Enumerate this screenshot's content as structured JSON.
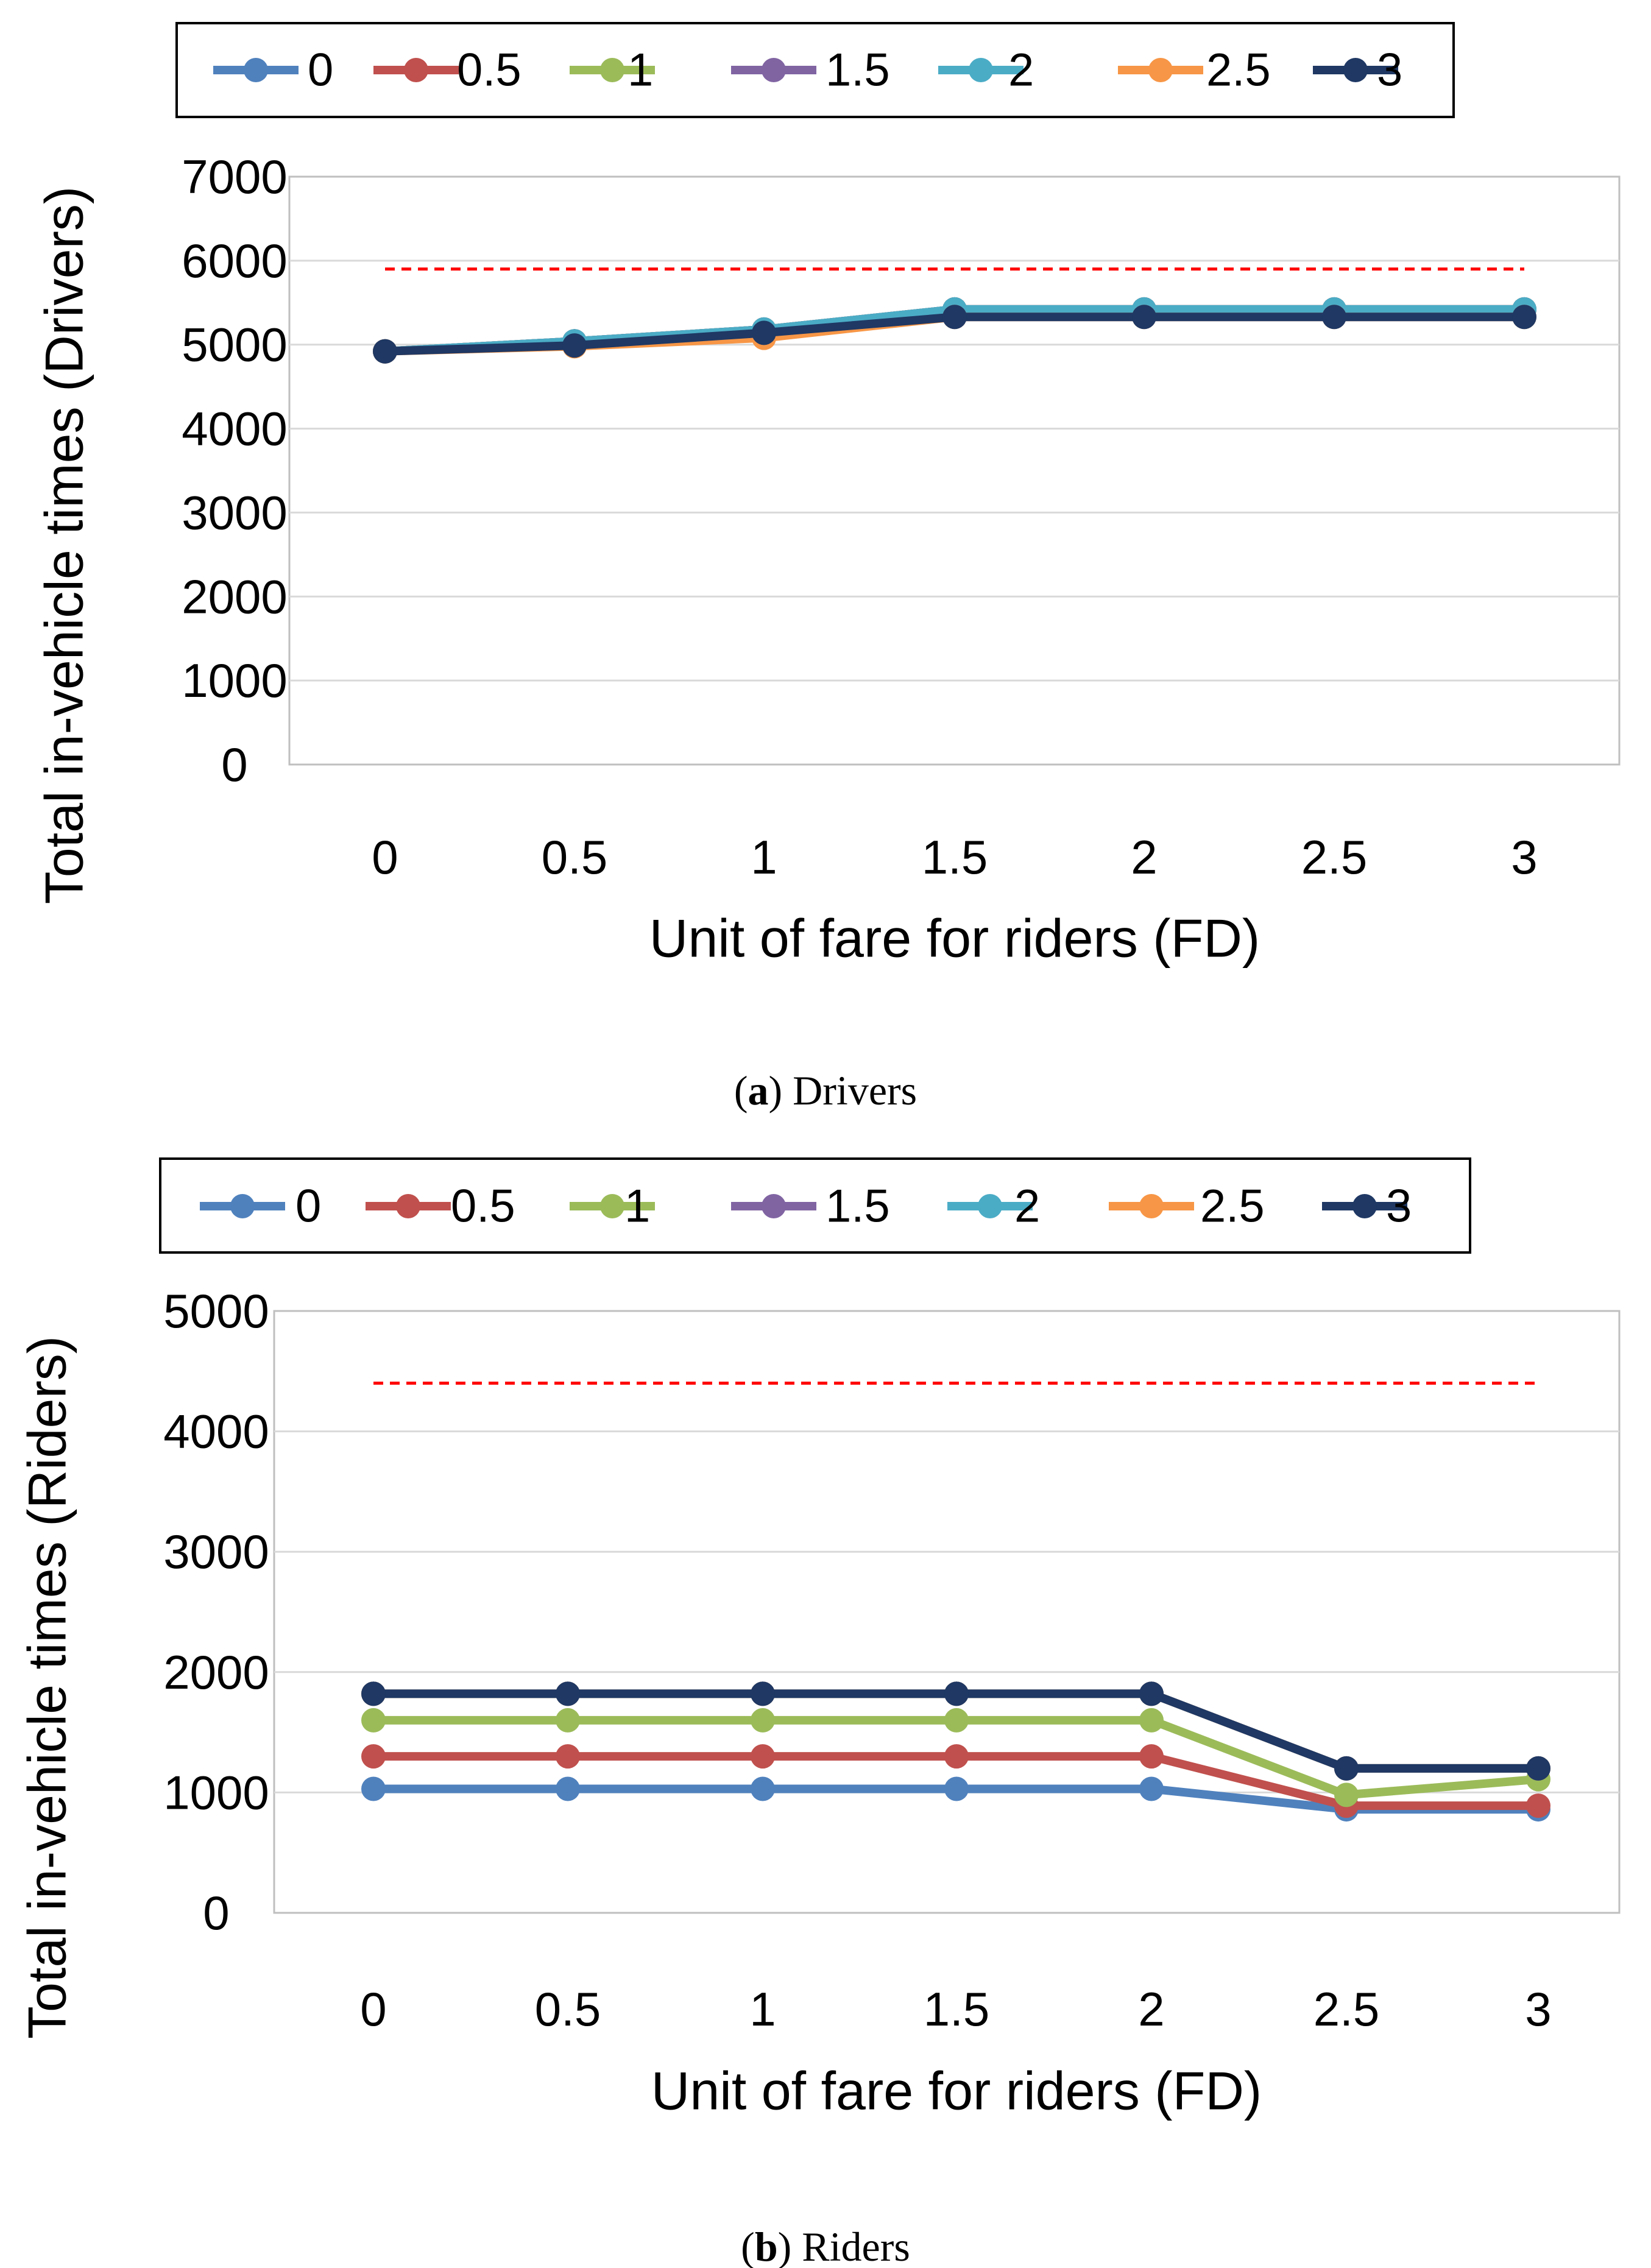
{
  "chart_data": [
    {
      "type": "line",
      "caption_letter": "a",
      "caption_text": ") Drivers",
      "caption_open": "(",
      "xlabel": "Unit of fare for riders (FD)",
      "ylabel": "Total in-vehicle times (Drivers)",
      "ylim": [
        0,
        7000
      ],
      "yticks": [
        "0",
        "1000",
        "2000",
        "3000",
        "4000",
        "5000",
        "6000",
        "7000"
      ],
      "ytick_values": [
        0,
        1000,
        2000,
        3000,
        4000,
        5000,
        6000,
        7000
      ],
      "categories": [
        "0",
        "0.5",
        "1",
        "1.5",
        "2",
        "2.5",
        "3"
      ],
      "grid": true,
      "legend_position": "top",
      "reference_line": {
        "value": 5900,
        "color": "#ff0000",
        "style": "dashed"
      },
      "series": [
        {
          "name": "0",
          "color": "#4f81bd",
          "values": [
            4920,
            5040,
            5180,
            5420,
            5420,
            5420,
            5420
          ]
        },
        {
          "name": "0.5",
          "color": "#c0504d",
          "values": [
            4920,
            5040,
            5180,
            5420,
            5420,
            5420,
            5420
          ]
        },
        {
          "name": "1",
          "color": "#9bbb59",
          "values": [
            4920,
            5040,
            5180,
            5420,
            5420,
            5420,
            5420
          ]
        },
        {
          "name": "1.5",
          "color": "#8064a2",
          "values": [
            4920,
            5040,
            5180,
            5420,
            5420,
            5420,
            5420
          ]
        },
        {
          "name": "2",
          "color": "#4bacc6",
          "values": [
            4920,
            5040,
            5180,
            5420,
            5420,
            5420,
            5420
          ]
        },
        {
          "name": "2.5",
          "color": "#f79646",
          "values": [
            4920,
            4980,
            5080,
            5330,
            5330,
            5330,
            5330
          ]
        },
        {
          "name": "3",
          "color": "#1f3864",
          "values": [
            4920,
            4990,
            5140,
            5330,
            5330,
            5330,
            5330
          ]
        }
      ]
    },
    {
      "type": "line",
      "caption_letter": "b",
      "caption_text": ") Riders",
      "caption_open": "(",
      "xlabel": "Unit of fare for riders (FD)",
      "ylabel": "Total in-vehicle times (Riders)",
      "ylim": [
        0,
        5000
      ],
      "yticks": [
        "0",
        "1000",
        "2000",
        "3000",
        "4000",
        "5000"
      ],
      "ytick_values": [
        0,
        1000,
        2000,
        3000,
        4000,
        5000
      ],
      "categories": [
        "0",
        "0.5",
        "1",
        "1.5",
        "2",
        "2.5",
        "3"
      ],
      "grid": true,
      "legend_position": "top",
      "reference_line": {
        "value": 4400,
        "color": "#ff0000",
        "style": "dashed"
      },
      "series": [
        {
          "name": "0",
          "color": "#4f81bd",
          "values": [
            1030,
            1030,
            1030,
            1030,
            1030,
            860,
            860
          ]
        },
        {
          "name": "0.5",
          "color": "#c0504d",
          "values": [
            1300,
            1300,
            1300,
            1300,
            1300,
            890,
            890
          ]
        },
        {
          "name": "1",
          "color": "#9bbb59",
          "values": [
            1600,
            1600,
            1600,
            1600,
            1600,
            980,
            1110
          ]
        },
        {
          "name": "1.5",
          "color": "#8064a2",
          "values": [
            1820,
            1820,
            1820,
            1820,
            1820,
            1200,
            1200
          ]
        },
        {
          "name": "2",
          "color": "#4bacc6",
          "values": [
            1820,
            1820,
            1820,
            1820,
            1820,
            1200,
            1200
          ]
        },
        {
          "name": "2.5",
          "color": "#f79646",
          "values": [
            1820,
            1820,
            1820,
            1820,
            1820,
            1200,
            1200
          ]
        },
        {
          "name": "3",
          "color": "#1f3864",
          "values": [
            1820,
            1820,
            1820,
            1820,
            1820,
            1200,
            1200
          ]
        }
      ]
    }
  ]
}
